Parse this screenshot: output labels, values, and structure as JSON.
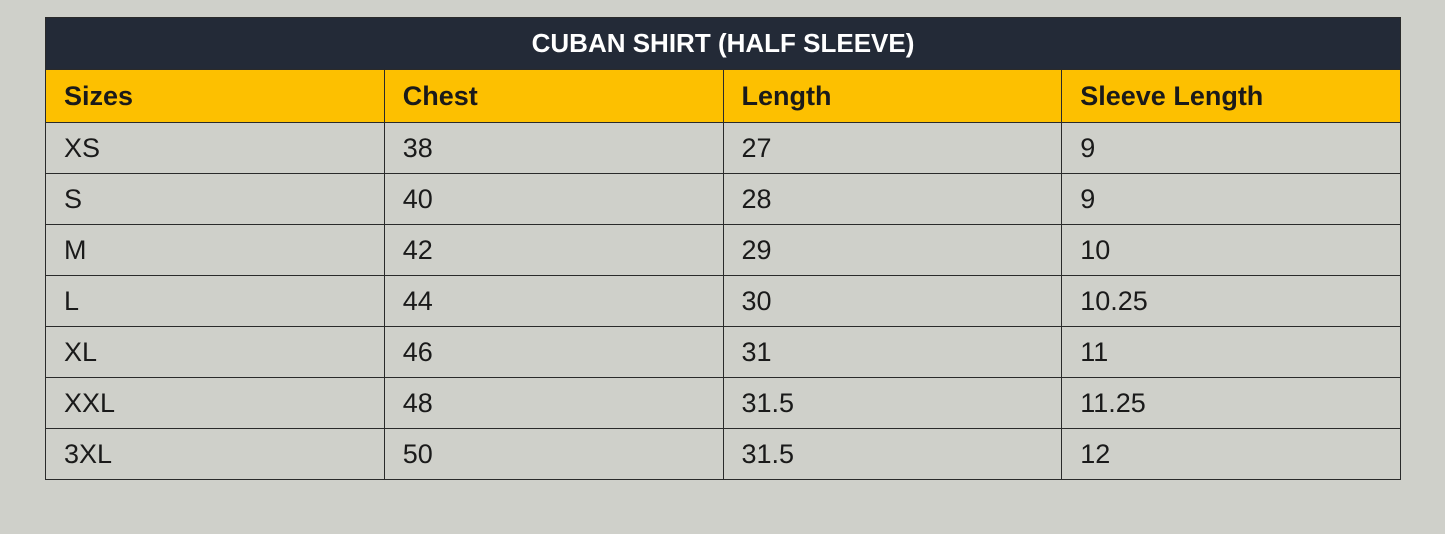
{
  "title": "CUBAN SHIRT (HALF SLEEVE)",
  "table": {
    "header": [
      "Sizes",
      "Chest",
      "Length",
      "Sleeve Length"
    ],
    "rows": [
      [
        "XS",
        38,
        27,
        9
      ],
      [
        "S",
        40,
        28,
        9
      ],
      [
        "M",
        42,
        29,
        10
      ],
      [
        "L",
        44,
        30,
        10.25
      ],
      [
        "XL",
        46,
        31,
        11
      ],
      [
        "XXL",
        48,
        31.5,
        11.25
      ],
      [
        "3XL",
        50,
        31.5,
        12
      ]
    ]
  }
}
